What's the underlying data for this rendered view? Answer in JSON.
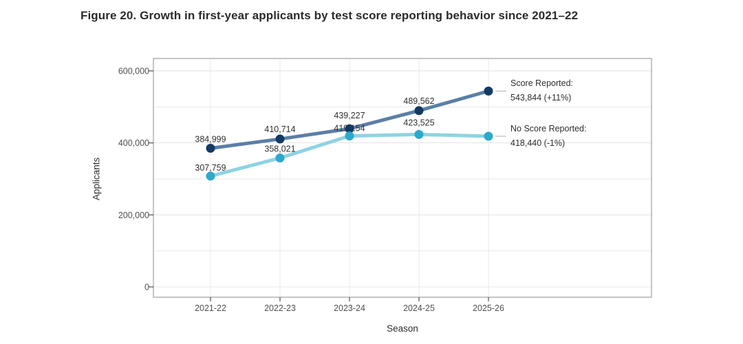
{
  "figure": {
    "title": "Figure 20. Growth in first-year applicants by test score reporting behavior since 2021–22"
  },
  "chart_data": {
    "type": "line",
    "title": "Figure 20. Growth in first-year applicants by test score reporting behavior since 2021–22",
    "xlabel": "Season",
    "ylabel": "Applicants",
    "categories": [
      "2021-22",
      "2022-23",
      "2023-24",
      "2024-25",
      "2025-26"
    ],
    "series": [
      {
        "name": "Score Reported",
        "line_color": "#5b7fa6",
        "marker_color": "#123a63",
        "values": [
          384999,
          410714,
          439227,
          489562,
          543844
        ],
        "point_labels": [
          "384,999",
          "410,714",
          "439,227",
          "489,562",
          ""
        ],
        "annotation": {
          "label": "Score Reported:",
          "value": "543,844 (+11%)"
        }
      },
      {
        "name": "No Score Reported",
        "line_color": "#8ed3e3",
        "marker_color": "#2ba9cd",
        "values": [
          307759,
          358021,
          419154,
          423525,
          418440
        ],
        "point_labels": [
          "307,759",
          "358,021",
          "419,154",
          "423,525",
          ""
        ],
        "annotation": {
          "label": "No Score Reported:",
          "value": "418,440 (-1%)"
        }
      }
    ],
    "ylim": [
      0,
      620000
    ],
    "yticks": [
      {
        "value": 0,
        "label": "0"
      },
      {
        "value": 200000,
        "label": "200,000"
      },
      {
        "value": 400000,
        "label": "400,000"
      },
      {
        "value": 600000,
        "label": "600,000"
      }
    ],
    "minor_yticks": [
      100000,
      300000,
      500000
    ],
    "grid": "light horizontal lines every 100,000; light vertical line at each season",
    "legend_position": "right-side annotations with leader lines",
    "colors": {
      "gridline": "#e9e9e9",
      "panel_border": "#9e9e9e",
      "tick": "#4d4d4d",
      "leader_line": "#bcbcbc",
      "title_text": "#2b2b2b",
      "label_text": "#2f2f2f"
    }
  }
}
